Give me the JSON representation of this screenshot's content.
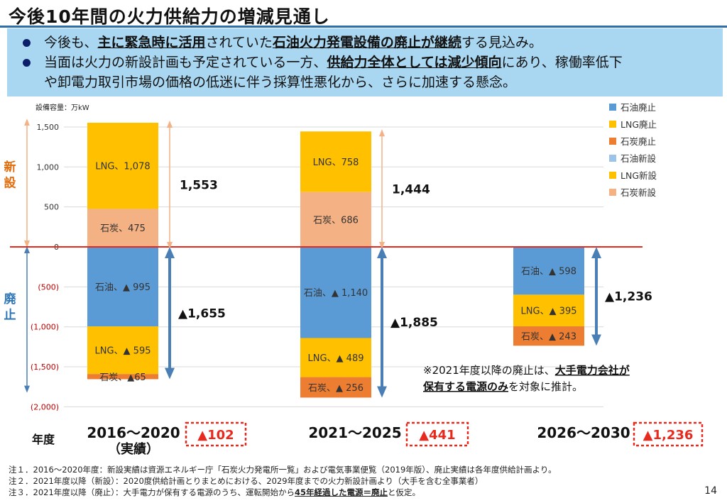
{
  "title": "今後10年間の火力供給力の増減見通し",
  "banner": {
    "bullet1": {
      "a": "今後も、",
      "b": "主に緊急時に活用",
      "c": "されていた",
      "d": "石油火力発電設備の廃止が",
      "e": "継続",
      "f": "する見込み。"
    },
    "bullet2": {
      "a": "当面は火力の新設計画も予定されている一方、",
      "b": "供給力全体としては減少傾向",
      "c": "にあり、稼働率低下",
      "d": "や卸電力取引市場の価格の低迷に伴う採算性悪化から、さらに加速する懸念。"
    }
  },
  "footnotes": {
    "n1": "注１．2016～2020年度：新設実績は資源エネルギー庁「石炭火力発電所一覧」および電気事業便覧（2019年版）、廃止実績は各年度供給計画より。",
    "n2": "注２．2021年度以降（新設）：2020度供給計画とりまとめにおける、2029年度までの火力新設計画より（大手を含む全事業者）",
    "n3a": "注３．2021年度以降（廃止）：大手電力が保有する電源のうち、運転開始から",
    "n3b": "45年経過した電源＝廃止",
    "n3c": "と仮定。"
  },
  "page_number": "14",
  "chart_data": {
    "type": "bar",
    "stacked": true,
    "ylabel": "設備容量：万kW",
    "ylim": [
      -2000,
      1600
    ],
    "yticks": [
      1500,
      1000,
      500,
      0,
      -500,
      -1000,
      -1500,
      -2000
    ],
    "ytick_labels": [
      "1,500",
      "1,000",
      "500",
      "0",
      "(500)",
      "(1,000)",
      "(1,500)",
      "(2,000)"
    ],
    "xlabel": "年度",
    "categories": [
      "2016～2020",
      "2021～2025",
      "2026～2030"
    ],
    "category_sublabels": [
      "（実績）",
      "",
      ""
    ],
    "net_change_labels": [
      "▲102",
      "▲441",
      "▲1,236"
    ],
    "grid": true,
    "legend_position": "right",
    "legend": [
      "石油廃止",
      "LNG廃止",
      "石炭廃止",
      "石油新設",
      "LNG新設",
      "石炭新設"
    ],
    "colors": {
      "石油廃止": "#5b9bd5",
      "LNG廃止": "#ffc000",
      "石炭廃止": "#ed7d31",
      "石油新設": "#9dc3e6",
      "LNG新設": "#ffc000",
      "石炭新設": "#f4b183",
      "accent_red": "#e8291e",
      "range_orange": "#f4b183",
      "range_blue": "#4a7fb5"
    },
    "series": [
      {
        "name": "石油廃止",
        "values": [
          -995,
          -1140,
          -598
        ],
        "labels": [
          "石油、▲ 995",
          "石油、▲ 1,140",
          "石油、▲ 598"
        ]
      },
      {
        "name": "LNG廃止",
        "values": [
          -595,
          -489,
          -395
        ],
        "labels": [
          "LNG、▲ 595",
          "LNG、▲ 489",
          "LNG、▲ 395"
        ]
      },
      {
        "name": "石炭廃止",
        "values": [
          -65,
          -256,
          -243
        ],
        "labels": [
          "石炭、▲65",
          "石炭、▲ 256",
          "石炭、▲ 243"
        ]
      },
      {
        "name": "石炭新設",
        "values": [
          475,
          686,
          0
        ],
        "labels": [
          "石炭、475",
          "石炭、686",
          ""
        ]
      },
      {
        "name": "LNG新設",
        "values": [
          1078,
          758,
          0
        ],
        "labels": [
          "LNG、1,078",
          "LNG、758",
          ""
        ]
      }
    ],
    "totals_new": [
      "1,553",
      "1,444",
      ""
    ],
    "totals_new_values": [
      1553,
      1444,
      0
    ],
    "totals_retire": [
      "▲1,655",
      "▲1,885",
      "▲1,236"
    ],
    "totals_retire_values": [
      -1655,
      -1885,
      -1236
    ],
    "side_labels": {
      "new": "新設",
      "retire": "廃止"
    },
    "note": {
      "a": "※2021年度以降の廃止は、",
      "b": "大手電力会社が",
      "c": "保有する電源のみ",
      "d": "を対象に推計。"
    }
  }
}
